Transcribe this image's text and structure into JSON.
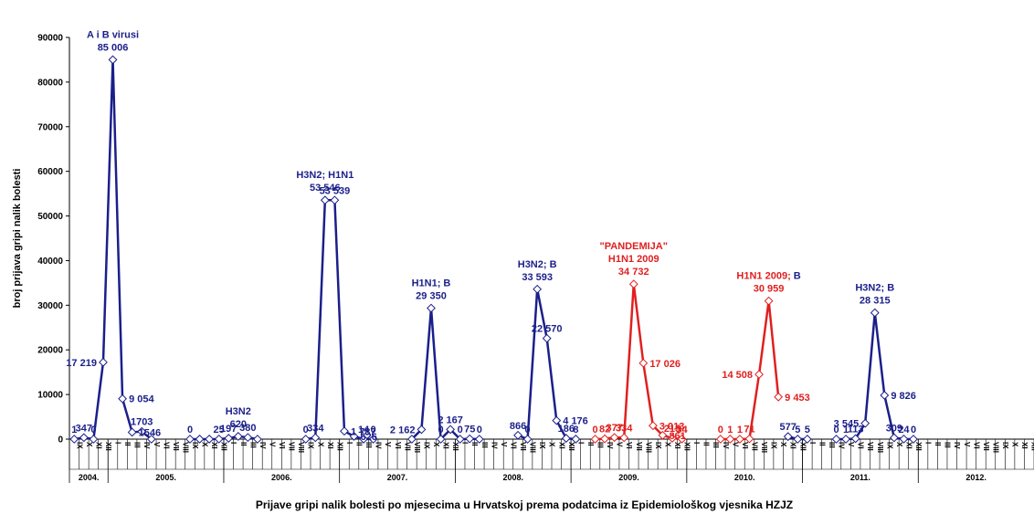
{
  "chart_data": {
    "type": "line",
    "title": "",
    "ylabel": "broj prijava gripi nalik bolesti",
    "caption": "Prijave gripi nalik bolesti po mjesecima u Hrvatskoj prema podatcima iz Epidemiološkog vjesnika HZJZ",
    "ylim": [
      0,
      90000
    ],
    "yticks": [
      "0",
      "10000",
      "20000",
      "30000",
      "40000",
      "50000",
      "60000",
      "70000",
      "80000",
      "90000"
    ],
    "grid": false,
    "legend": "none",
    "colors": {
      "normal": "#1b1f8a",
      "pandemic": "#e02020",
      "axis": "#000000"
    },
    "years": [
      {
        "label": "2004.",
        "months": 4
      },
      {
        "label": "2005.",
        "months": 12
      },
      {
        "label": "2006.",
        "months": 12
      },
      {
        "label": "2007.",
        "months": 12
      },
      {
        "label": "2008.",
        "months": 12
      },
      {
        "label": "2009.",
        "months": 12
      },
      {
        "label": "2010.",
        "months": 12
      },
      {
        "label": "2011.",
        "months": 12
      },
      {
        "label": "2012.",
        "months": 12
      }
    ],
    "month_labels": [
      "IX",
      "X",
      "XI",
      "XII",
      "I",
      "II",
      "III",
      "IV",
      "V",
      "VI",
      "VII",
      "VIII",
      "IX",
      "X",
      "XI",
      "XII",
      "I",
      "II",
      "III",
      "IV",
      "V",
      "VI",
      "VII",
      "VIII",
      "IX",
      "X",
      "XI",
      "XII",
      "I",
      "II",
      "III",
      "IV",
      "V",
      "VI",
      "VII",
      "VIII",
      "IX",
      "X",
      "XI",
      "XII",
      "I",
      "II",
      "III",
      "IV",
      "V",
      "VI",
      "VII",
      "VIII",
      "IX",
      "X",
      "XI",
      "XII",
      "I",
      "II",
      "III",
      "IV",
      "V",
      "VI",
      "VII",
      "VIII",
      "IX",
      "X",
      "XI",
      "XII",
      "I",
      "II",
      "III",
      "IV",
      "V",
      "VI",
      "VII",
      "VIII",
      "IX",
      "X",
      "XI",
      "XII",
      "I",
      "II",
      "III",
      "IV",
      "V",
      "VI",
      "VII",
      "VIII",
      "IX",
      "X",
      "XI",
      "XII",
      "I",
      "II",
      "III",
      "IV",
      "V",
      "VI",
      "VII",
      "VIII",
      "IX",
      "X",
      "XI",
      "XII",
      "I",
      "II",
      "III",
      "IV",
      "V",
      "VI",
      "VII",
      "VIII"
    ],
    "series": [
      {
        "color": "normal",
        "points": [
          {
            "m": 0,
            "v": 1,
            "label": "1"
          },
          {
            "m": 1,
            "v": 347,
            "label": "347"
          },
          {
            "m": 2,
            "v": 0,
            "label": "0"
          },
          {
            "m": 3,
            "v": 17219,
            "label": "17 219"
          },
          {
            "m": 4,
            "v": 85006,
            "label": "85 006"
          },
          {
            "m": 5,
            "v": 9054,
            "label": "9 054"
          },
          {
            "m": 6,
            "v": 1546,
            "label": "1546"
          },
          {
            "m": 7,
            "v": 1703,
            "label": "1703"
          },
          {
            "m": 8,
            "v": 0
          }
        ]
      },
      {
        "color": "normal",
        "points": [
          {
            "m": 12,
            "v": 0,
            "label": "0"
          },
          {
            "m": 13,
            "v": 8
          },
          {
            "m": 14,
            "v": 11
          },
          {
            "m": 15,
            "v": 25,
            "label": "25"
          },
          {
            "m": 16,
            "v": 197,
            "label": "197"
          },
          {
            "m": 17,
            "v": 620,
            "label": "620"
          },
          {
            "m": 18,
            "v": 380,
            "label": "380"
          },
          {
            "m": 19,
            "v": 0
          }
        ]
      },
      {
        "color": "normal",
        "points": [
          {
            "m": 24,
            "v": 0,
            "label": "0"
          },
          {
            "m": 25,
            "v": 334,
            "label": "334"
          },
          {
            "m": 26,
            "v": 53546,
            "label": "53 546"
          },
          {
            "m": 27,
            "v": 53539,
            "label": "53 539"
          },
          {
            "m": 28,
            "v": 1787,
            "label": "1 787"
          },
          {
            "m": 29,
            "v": 626,
            "label": "626"
          },
          {
            "m": 30,
            "v": 14,
            "label": "14"
          },
          {
            "m": 31,
            "v": 0,
            "label": "0"
          }
        ]
      },
      {
        "color": "normal",
        "points": [
          {
            "m": 35,
            "v": 0
          },
          {
            "m": 36,
            "v": 2162,
            "label": "2 162"
          },
          {
            "m": 37,
            "v": 29350,
            "label": "29 350"
          },
          {
            "m": 38,
            "v": 0,
            "label": "0"
          },
          {
            "m": 39,
            "v": 2167,
            "label": "2 167"
          },
          {
            "m": 40,
            "v": 0,
            "label": "0"
          },
          {
            "m": 41,
            "v": 75,
            "label": "75"
          },
          {
            "m": 42,
            "v": 0,
            "label": "0"
          }
        ]
      },
      {
        "color": "normal",
        "points": [
          {
            "m": 46,
            "v": 866,
            "label": "866"
          },
          {
            "m": 47,
            "v": 0,
            "label": "0"
          },
          {
            "m": 48,
            "v": 33593,
            "label": "33 593"
          },
          {
            "m": 49,
            "v": 22570,
            "label": "22 570"
          },
          {
            "m": 50,
            "v": 4176,
            "label": "4 176"
          },
          {
            "m": 51,
            "v": 186,
            "label": "186"
          },
          {
            "m": 52,
            "v": 8,
            "label": "8"
          }
        ]
      },
      {
        "color": "pandemic",
        "points": [
          {
            "m": 54,
            "v": 0,
            "label": "0"
          },
          {
            "m": 55,
            "v": 82,
            "label": "82"
          },
          {
            "m": 56,
            "v": 377,
            "label": "377"
          },
          {
            "m": 57,
            "v": 334,
            "label": "334"
          },
          {
            "m": 58,
            "v": 34732,
            "label": "34 732"
          },
          {
            "m": 59,
            "v": 17026,
            "label": "17 026"
          },
          {
            "m": 60,
            "v": 3013,
            "label": "3 013"
          },
          {
            "m": 61,
            "v": 861,
            "label": "861"
          },
          {
            "m": 62,
            "v": 215,
            "label": "215"
          },
          {
            "m": 63,
            "v": 34,
            "label": "34"
          }
        ]
      },
      {
        "color": "pandemic",
        "points": [
          {
            "m": 67,
            "v": 0,
            "label": "0"
          },
          {
            "m": 68,
            "v": 1,
            "label": "1"
          },
          {
            "m": 69,
            "v": 1,
            "label": "1"
          },
          {
            "m": 70,
            "v": 71,
            "label": "71"
          },
          {
            "m": 71,
            "v": 14508,
            "label": "14 508"
          },
          {
            "m": 72,
            "v": 30959,
            "label": "30 959"
          },
          {
            "m": 73,
            "v": 9453,
            "label": "9 453"
          }
        ]
      },
      {
        "color": "normal",
        "points": [
          {
            "m": 74,
            "v": 577,
            "label": "577"
          },
          {
            "m": 75,
            "v": 5,
            "label": "5"
          },
          {
            "m": 76,
            "v": 5,
            "label": "5"
          }
        ]
      },
      {
        "color": "normal",
        "points": [
          {
            "m": 79,
            "v": 0,
            "label": "0"
          },
          {
            "m": 80,
            "v": 1,
            "label": "1"
          },
          {
            "m": 81,
            "v": 113,
            "label": "113"
          },
          {
            "m": 82,
            "v": 3545,
            "label": "3 545"
          },
          {
            "m": 83,
            "v": 28315,
            "label": "28 315"
          },
          {
            "m": 84,
            "v": 9826,
            "label": "9 826"
          },
          {
            "m": 85,
            "v": 309,
            "label": "309"
          },
          {
            "m": 86,
            "v": 24,
            "label": "24"
          },
          {
            "m": 87,
            "v": 0,
            "label": "0"
          }
        ]
      }
    ],
    "annotations": [
      {
        "m": 4,
        "v": 85006,
        "color": "normal",
        "lines": [
          "A i B virusi"
        ]
      },
      {
        "m": 17,
        "v": 620,
        "color": "normal",
        "lines": [
          "H3N2"
        ]
      },
      {
        "m": 26,
        "v": 53546,
        "color": "normal",
        "lines": [
          "H3N2; H1N1"
        ]
      },
      {
        "m": 37,
        "v": 29350,
        "color": "normal",
        "lines": [
          "H1N1; B"
        ]
      },
      {
        "m": 48,
        "v": 33593,
        "color": "normal",
        "lines": [
          "H3N2; B"
        ]
      },
      {
        "m": 58,
        "v": 34732,
        "color": "pandemic",
        "lines": [
          "\"PANDEMIJA\"",
          "H1N1 2009"
        ]
      },
      {
        "m": 72,
        "v": 30959,
        "color": "pandemic",
        "lines": [
          "H1N1 2009; "
        ],
        "suffix": "B",
        "suffix_color": "normal"
      },
      {
        "m": 83,
        "v": 28315,
        "color": "normal",
        "lines": [
          "H3N2; B"
        ]
      }
    ]
  }
}
